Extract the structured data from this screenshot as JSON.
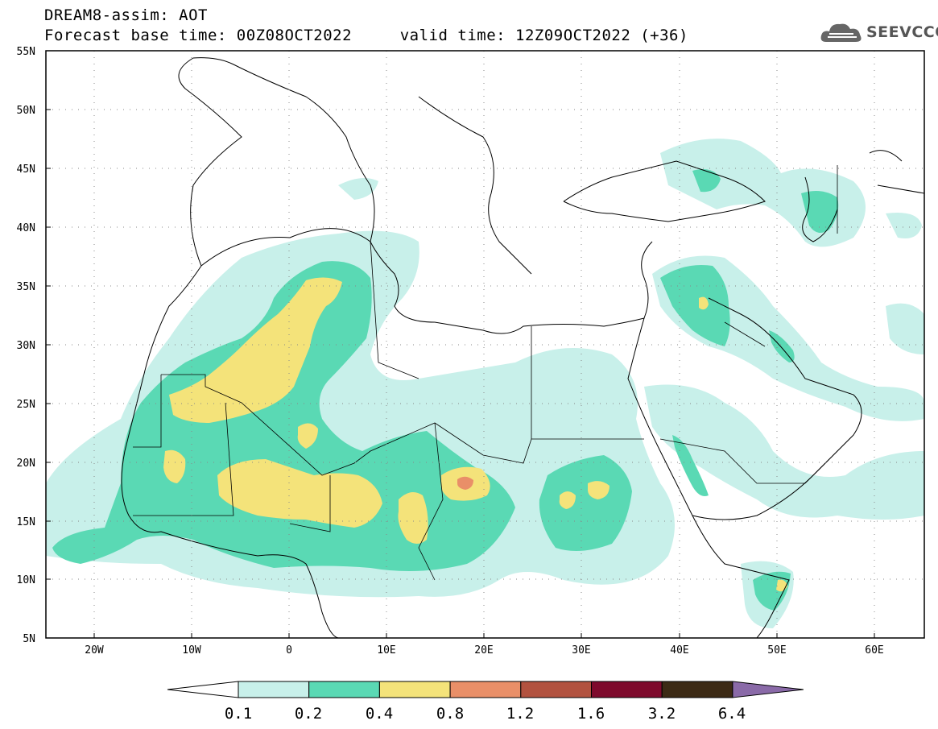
{
  "header": {
    "title_line1": "DREAM8-assim: AOT",
    "title_line2": "Forecast base time: 00Z08OCT2022     valid time: 12Z09OCT2022 (+36)",
    "logo_text": "SEEVCCC",
    "logo_icon": "cloud-icon"
  },
  "map": {
    "lat_labels": [
      "55N",
      "50N",
      "45N",
      "40N",
      "35N",
      "30N",
      "25N",
      "20N",
      "15N",
      "10N",
      "5N"
    ],
    "lon_labels": [
      "20W",
      "10W",
      "0",
      "10E",
      "20E",
      "30E",
      "40E",
      "50E",
      "60E"
    ],
    "gridlines": "dotted"
  },
  "colorbar": {
    "levels": [
      "0.1",
      "0.2",
      "0.4",
      "0.8",
      "1.2",
      "1.6",
      "3.2",
      "6.4"
    ],
    "colors": [
      "#ffffff",
      "#c8f0ea",
      "#5ad9b4",
      "#f4e37a",
      "#e98f68",
      "#b2523f",
      "#7e0a2c",
      "#3c2a15",
      "#8a6aa8"
    ]
  }
}
